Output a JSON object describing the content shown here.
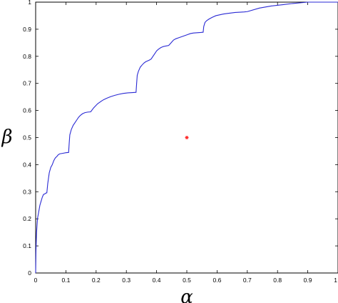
{
  "chart_data": {
    "type": "line",
    "title": "",
    "xlabel": "α",
    "ylabel": "β",
    "xlim": [
      0,
      1
    ],
    "ylim": [
      0,
      1
    ],
    "xticks": [
      "0",
      "0.1",
      "0.2",
      "0.3",
      "0.4",
      "0.5",
      "0.6",
      "0.7",
      "0.8",
      "0.9",
      "1"
    ],
    "yticks": [
      "0",
      "0.1",
      "0.2",
      "0.3",
      "0.4",
      "0.5",
      "0.6",
      "0.7",
      "0.8",
      "0.9",
      "1"
    ],
    "grid": false,
    "series": [
      {
        "type": "line",
        "color": "#2a2ad4",
        "x": [
          0,
          0.001,
          0.003,
          0.006,
          0.01,
          0.014,
          0.018,
          0.022,
          0.026,
          0.03,
          0.034,
          0.037,
          0.04,
          0.045,
          0.05,
          0.055,
          0.06,
          0.065,
          0.07,
          0.075,
          0.08,
          0.09,
          0.1,
          0.109,
          0.111,
          0.113,
          0.118,
          0.124,
          0.13,
          0.136,
          0.142,
          0.148,
          0.155,
          0.163,
          0.172,
          0.182,
          0.192,
          0.205,
          0.218,
          0.225,
          0.235,
          0.248,
          0.262,
          0.276,
          0.29,
          0.305,
          0.32,
          0.332,
          0.334,
          0.336,
          0.34,
          0.346,
          0.352,
          0.358,
          0.364,
          0.37,
          0.376,
          0.382,
          0.388,
          0.394,
          0.4,
          0.406,
          0.414,
          0.422,
          0.43,
          0.44,
          0.448,
          0.456,
          0.464,
          0.472,
          0.482,
          0.492,
          0.502,
          0.512,
          0.522,
          0.534,
          0.546,
          0.554,
          0.556,
          0.56,
          0.566,
          0.574,
          0.584,
          0.596,
          0.608,
          0.62,
          0.632,
          0.646,
          0.66,
          0.676,
          0.69,
          0.7,
          0.74,
          0.78,
          0.82,
          0.85,
          0.88,
          0.9,
          1.0
        ],
        "y": [
          0,
          0.08,
          0.15,
          0.2,
          0.225,
          0.25,
          0.265,
          0.28,
          0.29,
          0.292,
          0.295,
          0.296,
          0.33,
          0.37,
          0.39,
          0.4,
          0.415,
          0.425,
          0.43,
          0.437,
          0.44,
          0.442,
          0.444,
          0.445,
          0.48,
          0.51,
          0.53,
          0.545,
          0.555,
          0.565,
          0.575,
          0.582,
          0.588,
          0.592,
          0.594,
          0.595,
          0.61,
          0.625,
          0.635,
          0.64,
          0.645,
          0.651,
          0.656,
          0.66,
          0.663,
          0.665,
          0.666,
          0.667,
          0.7,
          0.73,
          0.745,
          0.76,
          0.768,
          0.775,
          0.78,
          0.783,
          0.786,
          0.79,
          0.8,
          0.81,
          0.82,
          0.826,
          0.832,
          0.836,
          0.838,
          0.84,
          0.85,
          0.86,
          0.865,
          0.868,
          0.872,
          0.876,
          0.88,
          0.884,
          0.886,
          0.887,
          0.888,
          0.889,
          0.91,
          0.925,
          0.932,
          0.938,
          0.944,
          0.95,
          0.953,
          0.956,
          0.958,
          0.96,
          0.962,
          0.963,
          0.964,
          0.965,
          0.978,
          0.986,
          0.991,
          0.995,
          0.998,
          1.0,
          1.0
        ]
      },
      {
        "type": "point",
        "color": "#ff2a2a",
        "x": [
          0.5
        ],
        "y": [
          0.5
        ]
      }
    ]
  }
}
